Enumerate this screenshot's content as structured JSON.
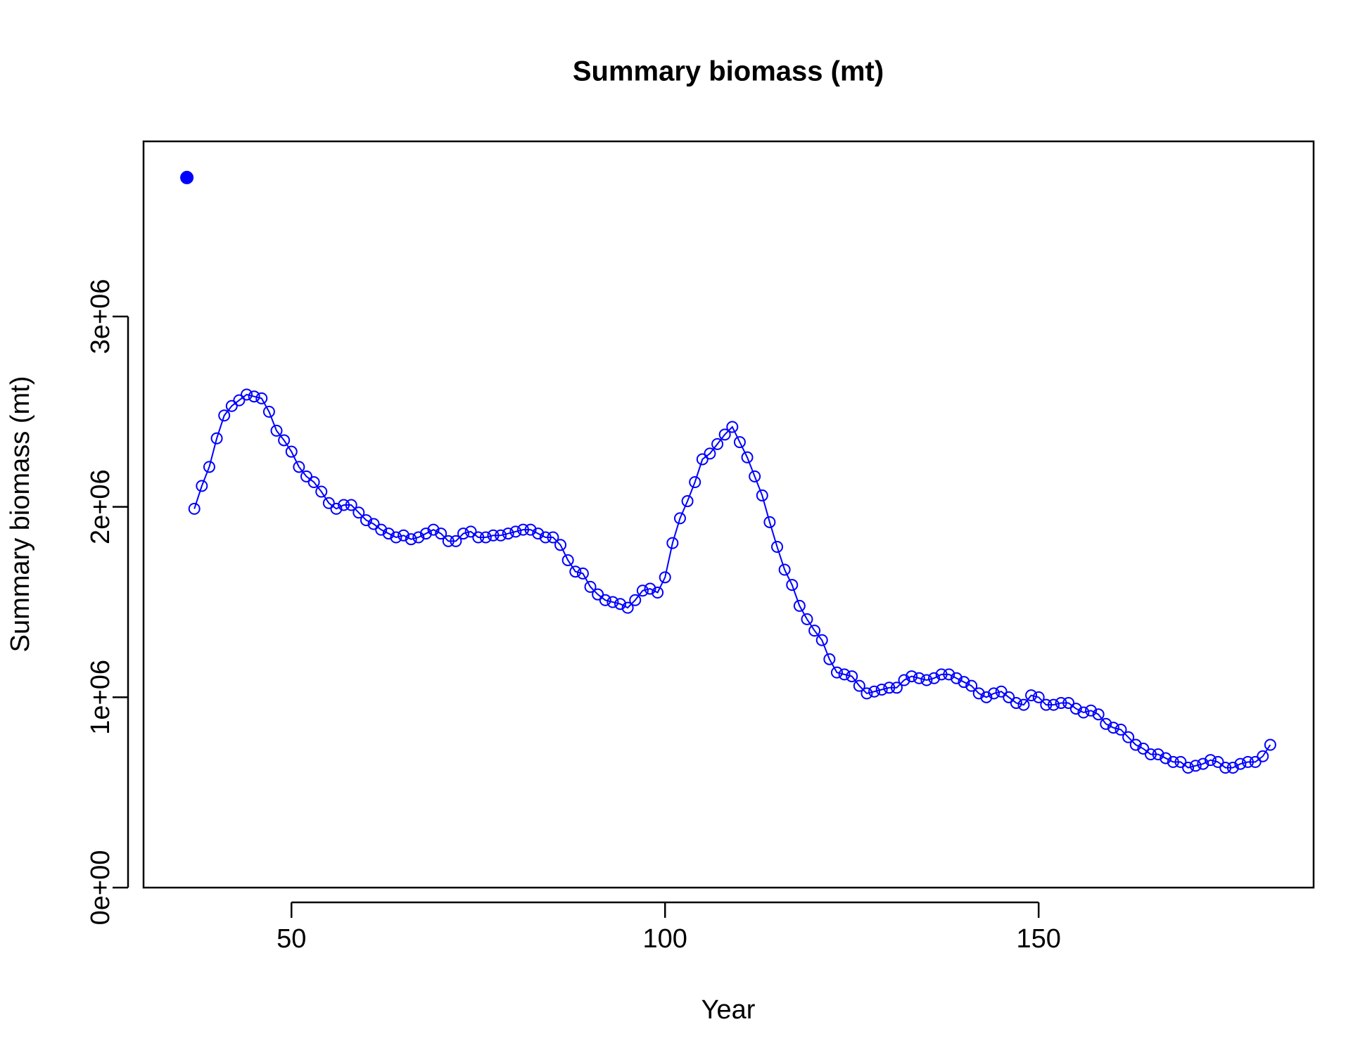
{
  "chart_data": {
    "type": "line",
    "title": "Summary biomass (mt)",
    "xlabel": "Year",
    "ylabel": "Summary biomass (mt)",
    "xlim": [
      30.2,
      186.8
    ],
    "ylim": [
      0,
      3920000
    ],
    "xticks": [
      50,
      100,
      150
    ],
    "yticks": [
      {
        "value": 0,
        "label": "0e+00"
      },
      {
        "value": 1000000,
        "label": "1e+06"
      },
      {
        "value": 2000000,
        "label": "2e+06"
      },
      {
        "value": 3000000,
        "label": "3e+06"
      }
    ],
    "grid": false,
    "series": [
      {
        "color": "#0000ff",
        "marker": "filled",
        "connected": false,
        "x": [
          36
        ],
        "values": [
          3730000
        ]
      },
      {
        "color": "#0000ff",
        "marker": "open",
        "connected": true,
        "x": [
          37,
          38,
          39,
          40,
          41,
          42,
          43,
          44,
          45,
          46,
          47,
          48,
          49,
          50,
          51,
          52,
          53,
          54,
          55,
          56,
          57,
          58,
          59,
          60,
          61,
          62,
          63,
          64,
          65,
          66,
          67,
          68,
          69,
          70,
          71,
          72,
          73,
          74,
          75,
          76,
          77,
          78,
          79,
          80,
          81,
          82,
          83,
          84,
          85,
          86,
          87,
          88,
          89,
          90,
          91,
          92,
          93,
          94,
          95,
          96,
          97,
          98,
          99,
          100,
          101,
          102,
          103,
          104,
          105,
          106,
          107,
          108,
          109,
          110,
          111,
          112,
          113,
          114,
          115,
          116,
          117,
          118,
          119,
          120,
          121,
          122,
          123,
          124,
          125,
          126,
          127,
          128,
          129,
          130,
          131,
          132,
          133,
          134,
          135,
          136,
          137,
          138,
          139,
          140,
          141,
          142,
          143,
          144,
          145,
          146,
          147,
          148,
          149,
          150,
          151,
          152,
          153,
          154,
          155,
          156,
          157,
          158,
          159,
          160,
          161,
          162,
          163,
          164,
          165,
          166,
          167,
          168,
          169,
          170,
          171,
          172,
          173,
          174,
          175,
          176,
          177,
          178,
          179,
          180,
          181
        ],
        "values": [
          1990000,
          2110000,
          2210000,
          2360000,
          2480000,
          2530000,
          2560000,
          2590000,
          2580000,
          2570000,
          2500000,
          2400000,
          2350000,
          2290000,
          2210000,
          2160000,
          2130000,
          2080000,
          2020000,
          1990000,
          2010000,
          2010000,
          1970000,
          1930000,
          1910000,
          1880000,
          1860000,
          1840000,
          1850000,
          1830000,
          1840000,
          1860000,
          1880000,
          1860000,
          1820000,
          1820000,
          1860000,
          1870000,
          1840000,
          1840000,
          1850000,
          1850000,
          1860000,
          1870000,
          1880000,
          1880000,
          1860000,
          1840000,
          1840000,
          1800000,
          1720000,
          1660000,
          1650000,
          1580000,
          1540000,
          1510000,
          1500000,
          1490000,
          1470000,
          1510000,
          1560000,
          1570000,
          1550000,
          1630000,
          1810000,
          1940000,
          2030000,
          2130000,
          2250000,
          2280000,
          2330000,
          2380000,
          2420000,
          2340000,
          2260000,
          2160000,
          2060000,
          1920000,
          1790000,
          1670000,
          1590000,
          1480000,
          1410000,
          1350000,
          1300000,
          1200000,
          1130000,
          1120000,
          1110000,
          1060000,
          1020000,
          1030000,
          1040000,
          1050000,
          1050000,
          1090000,
          1110000,
          1100000,
          1090000,
          1100000,
          1120000,
          1120000,
          1100000,
          1080000,
          1060000,
          1020000,
          1000000,
          1020000,
          1030000,
          1000000,
          970000,
          960000,
          1010000,
          1000000,
          960000,
          960000,
          970000,
          970000,
          940000,
          920000,
          930000,
          910000,
          860000,
          840000,
          830000,
          790000,
          750000,
          730000,
          700000,
          700000,
          680000,
          660000,
          660000,
          630000,
          640000,
          650000,
          670000,
          660000,
          630000,
          630000,
          650000,
          660000,
          660000,
          690000,
          750000
        ]
      }
    ]
  }
}
